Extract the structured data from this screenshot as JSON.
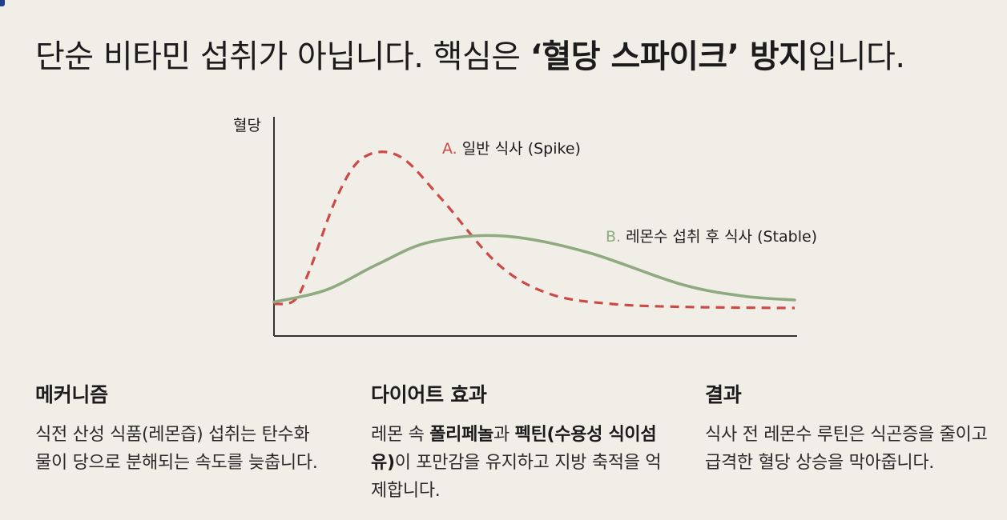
{
  "headline": {
    "part1": "단순 비타민 섭취가 아닙니다. 핵심은 ",
    "emphasis1": "‘혈당 스파이크’ 방지",
    "part2": "입니다."
  },
  "chart_data": {
    "type": "line",
    "ylabel": "혈당",
    "xlabel": "",
    "x_range": [
      0,
      10
    ],
    "y_range": [
      0,
      10
    ],
    "series": [
      {
        "name": "A. 일반 식사 (Spike)",
        "marker": "A.",
        "label": "일반 식사 (Spike)",
        "style": "dashed",
        "color": "#cc4a45",
        "points": [
          [
            0,
            1.2
          ],
          [
            0.4,
            1.4
          ],
          [
            0.7,
            3.0
          ],
          [
            1.2,
            6.5
          ],
          [
            1.7,
            8.5
          ],
          [
            2.4,
            8.6
          ],
          [
            3.2,
            6.5
          ],
          [
            4.3,
            3.2
          ],
          [
            5.3,
            1.7
          ],
          [
            6.5,
            1.2
          ],
          [
            8,
            1.05
          ],
          [
            10,
            1.0
          ]
        ]
      },
      {
        "name": "B. 레몬수 섭취 후 식사 (Stable)",
        "marker": "B.",
        "label": "레몬수 섭취 후 식사 (Stable)",
        "style": "solid",
        "color": "#8faa80",
        "points": [
          [
            0,
            1.3
          ],
          [
            1,
            1.9
          ],
          [
            2,
            3.2
          ],
          [
            3,
            4.3
          ],
          [
            4.4,
            4.6
          ],
          [
            6,
            3.8
          ],
          [
            7.8,
            2.2
          ],
          [
            9,
            1.6
          ],
          [
            10,
            1.4
          ]
        ]
      }
    ]
  },
  "colors": {
    "spike": "#cc4a45",
    "stable": "#8faa80",
    "axis": "#333333"
  },
  "mechanism": {
    "title": "메커니즘",
    "text": "식전 산성 식품(레몬즙) 섭취는 탄수화물이 당으로 분해되는 속도를 늦춥니다."
  },
  "diet": {
    "title": "다이어트 효과",
    "t1": "레몬 속 ",
    "b1": "폴리페놀",
    "t2": "과 ",
    "b2": "펙틴(수용성 식이섬유)",
    "t3": "이 포만감을 유지하고 지방 축적을 억제합니다."
  },
  "result": {
    "title": "결과",
    "text": "식사 전 레몬수 루틴은 식곤증을 줄이고 급격한 혈당 상승을 막아줍니다."
  }
}
